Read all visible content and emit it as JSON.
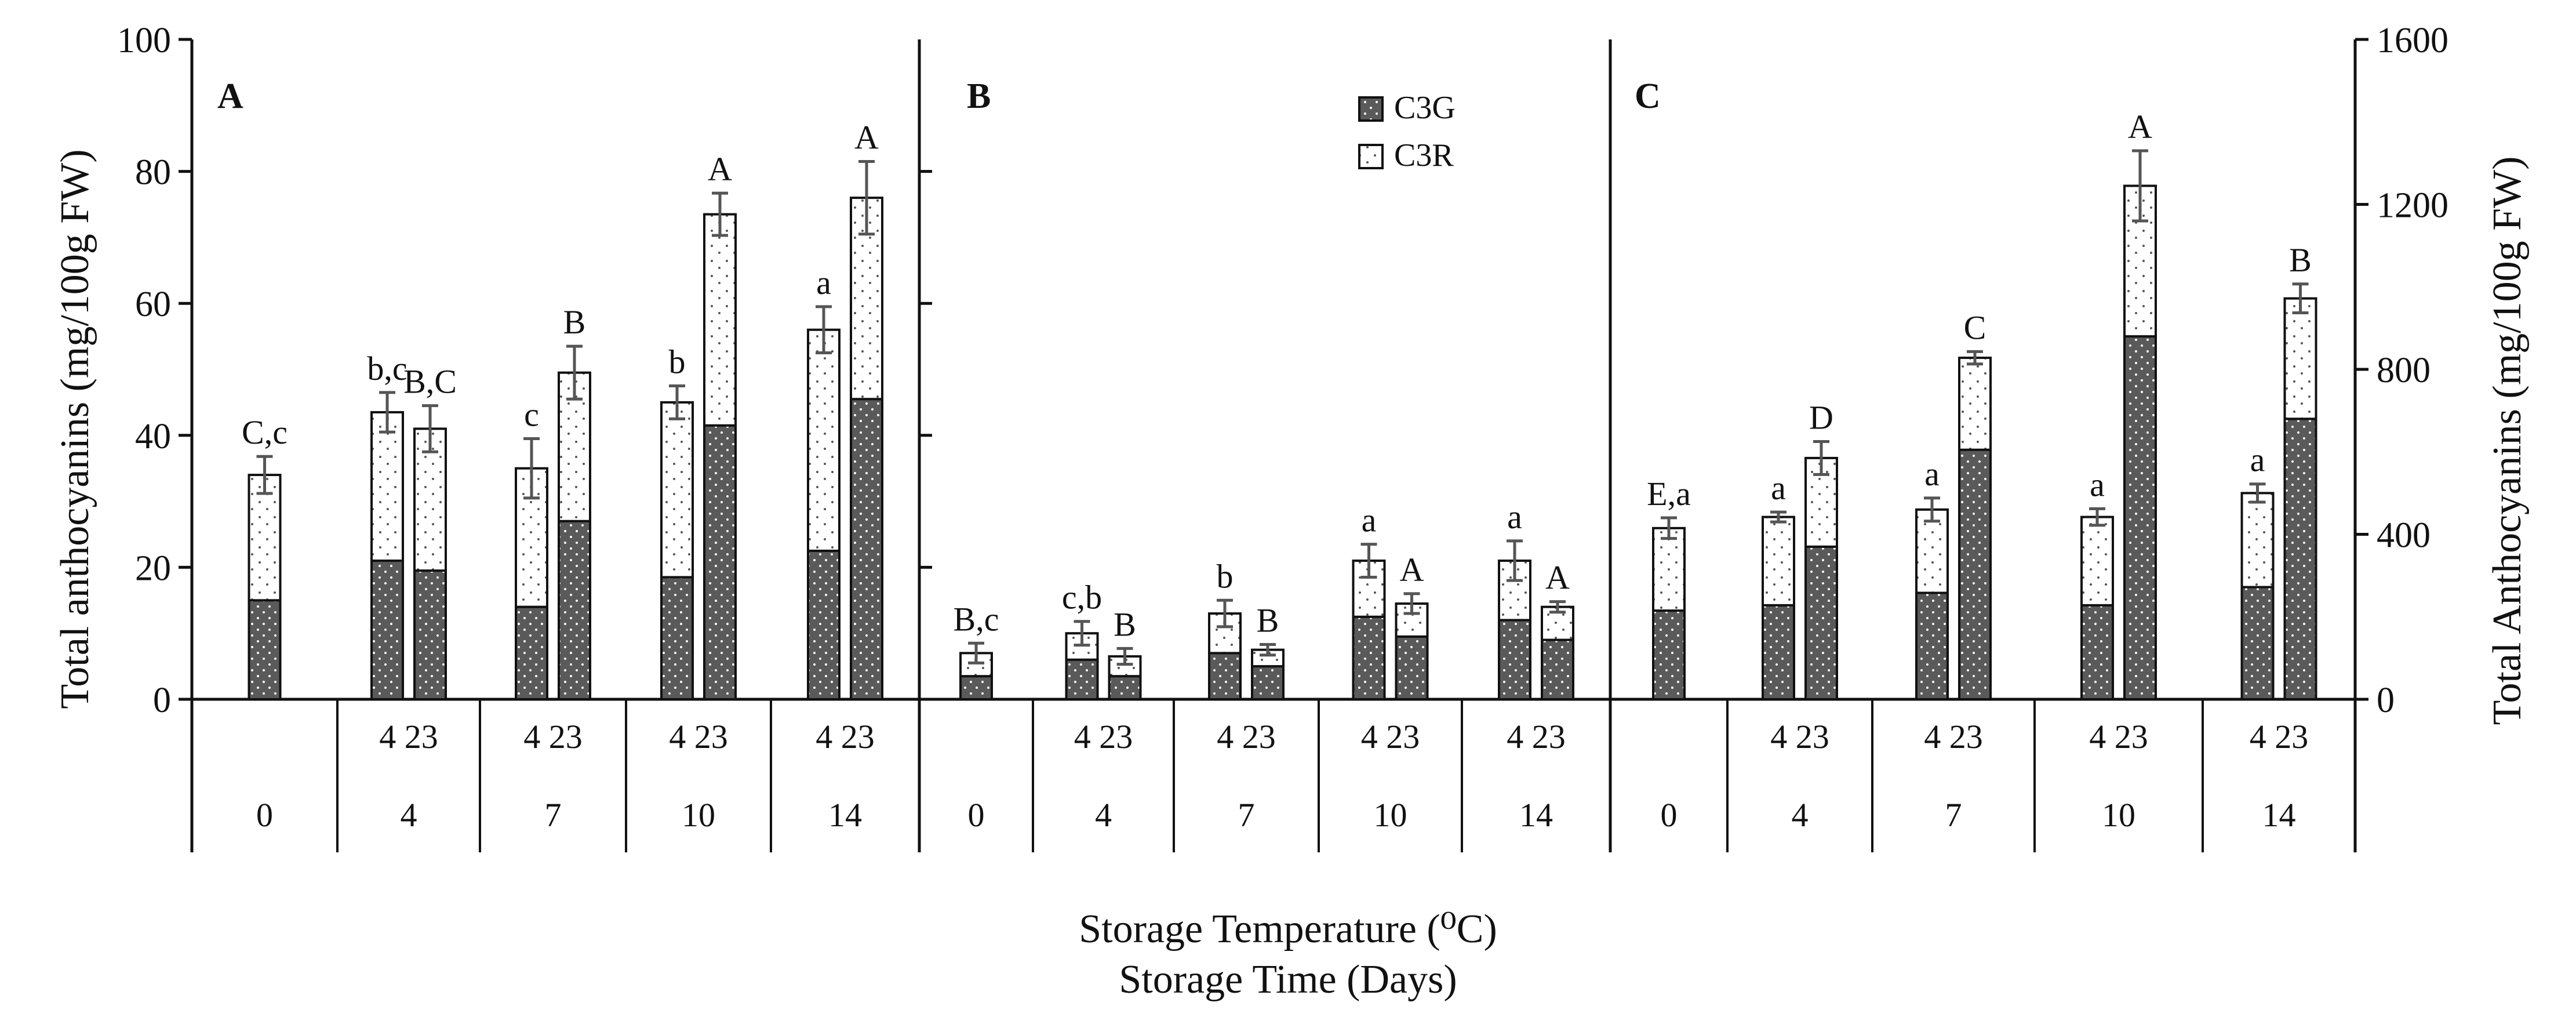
{
  "colors": {
    "c3g_fill": "#5a5a5a",
    "c3r_fill": "#ffffff",
    "axis": "#111111",
    "error_bar": "#555555"
  },
  "figure": {
    "y_label_left": "Total anthocyanins (mg/100g FW)",
    "y_label_right": "Total Anthocyanins (mg/100g FW)",
    "x_label_line1": "Storage Temperature (⁰C)",
    "x_label_line2": "Storage Time (Days)",
    "legend": [
      "C3G",
      "C3R"
    ],
    "left_ticks": [
      "0",
      "20",
      "40",
      "60",
      "80",
      "100"
    ],
    "right_ticks": [
      "0",
      "400",
      "800",
      "1200",
      "1600"
    ]
  },
  "chart_data": [
    {
      "type": "stacked-bar",
      "panel": "A",
      "axis": "left",
      "ylim": [
        0,
        100
      ],
      "days": [
        "0",
        "4",
        "7",
        "10",
        "14"
      ],
      "temp_label": "4 23",
      "bars": [
        {
          "day": "0",
          "c3g": 15,
          "total": 34,
          "err": 2.8,
          "label": "C,c"
        },
        {
          "day": "4",
          "temp": "4",
          "c3g": 21,
          "total": 43.5,
          "err": 3,
          "label": "b,c"
        },
        {
          "day": "4",
          "temp": "23",
          "c3g": 19.5,
          "total": 41,
          "err": 3.5,
          "label": "B,C"
        },
        {
          "day": "7",
          "temp": "4",
          "c3g": 14,
          "total": 35,
          "err": 4.5,
          "label": "c"
        },
        {
          "day": "7",
          "temp": "23",
          "c3g": 27,
          "total": 49.5,
          "err": 4,
          "label": "B"
        },
        {
          "day": "10",
          "temp": "4",
          "c3g": 18.5,
          "total": 45,
          "err": 2.5,
          "label": "b"
        },
        {
          "day": "10",
          "temp": "23",
          "c3g": 41.5,
          "total": 73.5,
          "err": 3.2,
          "label": "A"
        },
        {
          "day": "14",
          "temp": "4",
          "c3g": 22.5,
          "total": 56,
          "err": 3.5,
          "label": "a"
        },
        {
          "day": "14",
          "temp": "23",
          "c3g": 45.5,
          "total": 76,
          "err": 5.5,
          "label": "A"
        }
      ]
    },
    {
      "type": "stacked-bar",
      "panel": "B",
      "axis": "left",
      "ylim": [
        0,
        100
      ],
      "days": [
        "0",
        "4",
        "7",
        "10",
        "14"
      ],
      "temp_label": "4 23",
      "bars": [
        {
          "day": "0",
          "c3g": 3.5,
          "total": 7,
          "err": 1.5,
          "label": "B,c"
        },
        {
          "day": "4",
          "temp": "4",
          "c3g": 6,
          "total": 10,
          "err": 1.8,
          "label": "c,b"
        },
        {
          "day": "4",
          "temp": "23",
          "c3g": 3.5,
          "total": 6.5,
          "err": 1.2,
          "label": "B"
        },
        {
          "day": "7",
          "temp": "4",
          "c3g": 7,
          "total": 13,
          "err": 2,
          "label": "b"
        },
        {
          "day": "7",
          "temp": "23",
          "c3g": 5,
          "total": 7.5,
          "err": 0.8,
          "label": "B"
        },
        {
          "day": "10",
          "temp": "4",
          "c3g": 12.5,
          "total": 21,
          "err": 2.5,
          "label": "a"
        },
        {
          "day": "10",
          "temp": "23",
          "c3g": 9.5,
          "total": 14.5,
          "err": 1.5,
          "label": "A"
        },
        {
          "day": "14",
          "temp": "4",
          "c3g": 12,
          "total": 21,
          "err": 3,
          "label": "a"
        },
        {
          "day": "14",
          "temp": "23",
          "c3g": 9,
          "total": 14,
          "err": 0.8,
          "label": "A"
        }
      ]
    },
    {
      "type": "stacked-bar",
      "panel": "C",
      "axis": "right",
      "ylim": [
        0,
        1600
      ],
      "days": [
        "0",
        "4",
        "7",
        "10",
        "14"
      ],
      "temp_label": "4 23",
      "bars": [
        {
          "day": "0",
          "c3g": 215,
          "total": 415,
          "err": 25,
          "label": "E,a"
        },
        {
          "day": "4",
          "temp": "4",
          "c3g": 228,
          "total": 442,
          "err": 12,
          "label": "a"
        },
        {
          "day": "4",
          "temp": "23",
          "c3g": 370,
          "total": 585,
          "err": 40,
          "label": "D"
        },
        {
          "day": "7",
          "temp": "4",
          "c3g": 258,
          "total": 460,
          "err": 28,
          "label": "a"
        },
        {
          "day": "7",
          "temp": "23",
          "c3g": 605,
          "total": 828,
          "err": 15,
          "label": "C"
        },
        {
          "day": "10",
          "temp": "4",
          "c3g": 228,
          "total": 442,
          "err": 20,
          "label": "a"
        },
        {
          "day": "10",
          "temp": "23",
          "c3g": 880,
          "total": 1245,
          "err": 85,
          "label": "A"
        },
        {
          "day": "14",
          "temp": "4",
          "c3g": 272,
          "total": 500,
          "err": 22,
          "label": "a"
        },
        {
          "day": "14",
          "temp": "23",
          "c3g": 680,
          "total": 972,
          "err": 35,
          "label": "B"
        }
      ]
    }
  ]
}
